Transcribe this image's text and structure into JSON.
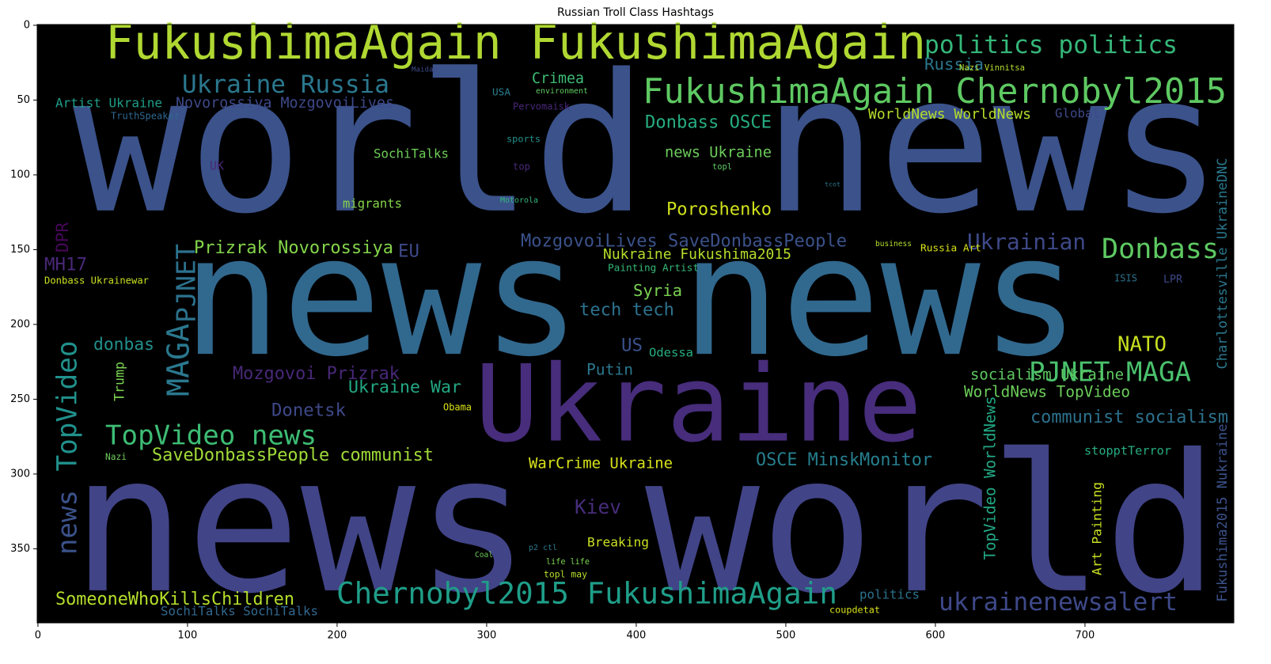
{
  "chart_data": {
    "type": "wordcloud",
    "title": "Russian Troll Class Hashtags",
    "background": "#000000",
    "xlim": [
      -0.5,
      799.5
    ],
    "ylim": [
      399.5,
      -0.5
    ],
    "xticks": [
      0,
      100,
      200,
      300,
      400,
      500,
      600,
      700
    ],
    "yticks": [
      0,
      50,
      100,
      150,
      200,
      250,
      300,
      350
    ],
    "words": [
      {
        "text": "FukushimaAgain FukushimaAgain",
        "color": "#b0d832"
      },
      {
        "text": "world news",
        "color": "#3b528b"
      },
      {
        "text": "news news",
        "color": "#31688e"
      },
      {
        "text": "Ukraine",
        "color": "#472d7b"
      },
      {
        "text": "news world",
        "color": "#414487"
      },
      {
        "text": "FukushimaAgain Chernobyl2015",
        "color": "#5ec962"
      },
      {
        "text": "politics politics",
        "color": "#35b779"
      },
      {
        "text": "Ukraine Russia",
        "color": "#2a788e"
      },
      {
        "text": "Novorossiya MozgovoiLives",
        "color": "#3e4989"
      },
      {
        "text": "Artist Ukraine",
        "color": "#1f9e89"
      },
      {
        "text": "Crimea",
        "color": "#3dbc74"
      },
      {
        "text": "Russia",
        "color": "#2a788e"
      },
      {
        "text": "Donbass OSCE",
        "color": "#26ad81"
      },
      {
        "text": "news Ukraine",
        "color": "#6ccd5a"
      },
      {
        "text": "SochiTalks",
        "color": "#6ece58"
      },
      {
        "text": "Poroshenko",
        "color": "#d0e11c"
      },
      {
        "text": "MozgovoiLives SaveDonbassPeople",
        "color": "#3b528b"
      },
      {
        "text": "Prizrak Novorossiya",
        "color": "#84d44b"
      },
      {
        "text": "Donbass",
        "color": "#5ec962"
      },
      {
        "text": "Ukrainian",
        "color": "#3e4989"
      },
      {
        "text": "Nukraine Fukushima2015",
        "color": "#b5de2b"
      },
      {
        "text": "Painting Artist",
        "color": "#35b779"
      },
      {
        "text": "Syria",
        "color": "#7ad151"
      },
      {
        "text": "tech tech",
        "color": "#2c728e"
      },
      {
        "text": "PJNET",
        "color": "#2c728e"
      },
      {
        "text": "MAGA",
        "color": "#2a788e"
      },
      {
        "text": "TopVideo",
        "color": "#21918c"
      },
      {
        "text": "TopVideo news",
        "color": "#3dbc74"
      },
      {
        "text": "SaveDonbassPeople communist",
        "color": "#a0da39"
      },
      {
        "text": "donbas",
        "color": "#21918c"
      },
      {
        "text": "Mozgovoi Prizrak",
        "color": "#482878"
      },
      {
        "text": "Ukraine War",
        "color": "#22a884"
      },
      {
        "text": "Donetsk",
        "color": "#3e4989"
      },
      {
        "text": "PJNET MAGA",
        "color": "#4ac16d"
      },
      {
        "text": "NATO",
        "color": "#c8e020"
      },
      {
        "text": "socialism Ukraine",
        "color": "#5ec962"
      },
      {
        "text": "WorldNews TopVideo",
        "color": "#6ccd5a"
      },
      {
        "text": "communist socialism",
        "color": "#2c728e"
      },
      {
        "text": "OSCE MinskMonitor",
        "color": "#277f8e"
      },
      {
        "text": "WarCrime Ukraine",
        "color": "#d8e219"
      },
      {
        "text": "Putin",
        "color": "#2a788e"
      },
      {
        "text": "Odessa",
        "color": "#27ad81"
      },
      {
        "text": "US",
        "color": "#3b528b"
      },
      {
        "text": "news",
        "color": "#3b528b"
      },
      {
        "text": "Kiev",
        "color": "#472d7b"
      },
      {
        "text": "Breaking",
        "color": "#c8e020"
      },
      {
        "text": "Chernobyl2015 FukushimaAgain",
        "color": "#1f9e89"
      },
      {
        "text": "SomeoneWhoKillsChildren",
        "color": "#b5de2b"
      },
      {
        "text": "SochiTalks SochiTalks",
        "color": "#31688e"
      },
      {
        "text": "ukrainenewsalert",
        "color": "#3e4989"
      },
      {
        "text": "politics",
        "color": "#2c728e"
      },
      {
        "text": "coupdetat",
        "color": "#d8e219"
      },
      {
        "text": "stopptTerror",
        "color": "#26ad81"
      },
      {
        "text": "Art Painting",
        "color": "#c8e020"
      },
      {
        "text": "TopVideo WorldNews",
        "color": "#22a884"
      },
      {
        "text": "Fukushima2015 Nukraine",
        "color": "#3b528b"
      },
      {
        "text": "Charlottesville UkraineDNC",
        "color": "#2a788e"
      },
      {
        "text": "MH17",
        "color": "#482878"
      },
      {
        "text": "DPR",
        "color": "#46075a"
      },
      {
        "text": "EU",
        "color": "#3e4989"
      },
      {
        "text": "migrants",
        "color": "#84d44b"
      },
      {
        "text": "Trump",
        "color": "#7ad151"
      },
      {
        "text": "WorldNews WorldNews",
        "color": "#b5de2b"
      },
      {
        "text": "Global",
        "color": "#3e4989"
      },
      {
        "text": "environment",
        "color": "#5ec962"
      },
      {
        "text": "USA",
        "color": "#277f8e"
      },
      {
        "text": "Pervomaisk",
        "color": "#482878"
      },
      {
        "text": "TruthSpeaker",
        "color": "#31688e"
      },
      {
        "text": "Donbass Ukrainewar",
        "color": "#c8e020"
      },
      {
        "text": "Nazi Vinnitsa",
        "color": "#b5de2b"
      },
      {
        "text": "Russia Art",
        "color": "#d8e219"
      },
      {
        "text": "UK",
        "color": "#482878"
      },
      {
        "text": "Nazi",
        "color": "#6ccd5a"
      },
      {
        "text": "Obama",
        "color": "#d8e219"
      },
      {
        "text": "ISIS",
        "color": "#2c728e"
      },
      {
        "text": "LPR",
        "color": "#3e4989"
      },
      {
        "text": "Motorola",
        "color": "#35b779"
      },
      {
        "text": "topl",
        "color": "#5ec962"
      },
      {
        "text": "tcot",
        "color": "#2a788e"
      },
      {
        "text": "sports",
        "color": "#21918c"
      },
      {
        "text": "top",
        "color": "#482878"
      },
      {
        "text": "Coal",
        "color": "#6ccd5a"
      },
      {
        "text": "life life",
        "color": "#7ad151"
      },
      {
        "text": "topl may",
        "color": "#b5de2b"
      },
      {
        "text": "p2 ctl",
        "color": "#2a788e"
      },
      {
        "text": "business",
        "color": "#b5de2b"
      },
      {
        "text": "Maidan",
        "color": "#3e4989"
      }
    ]
  }
}
